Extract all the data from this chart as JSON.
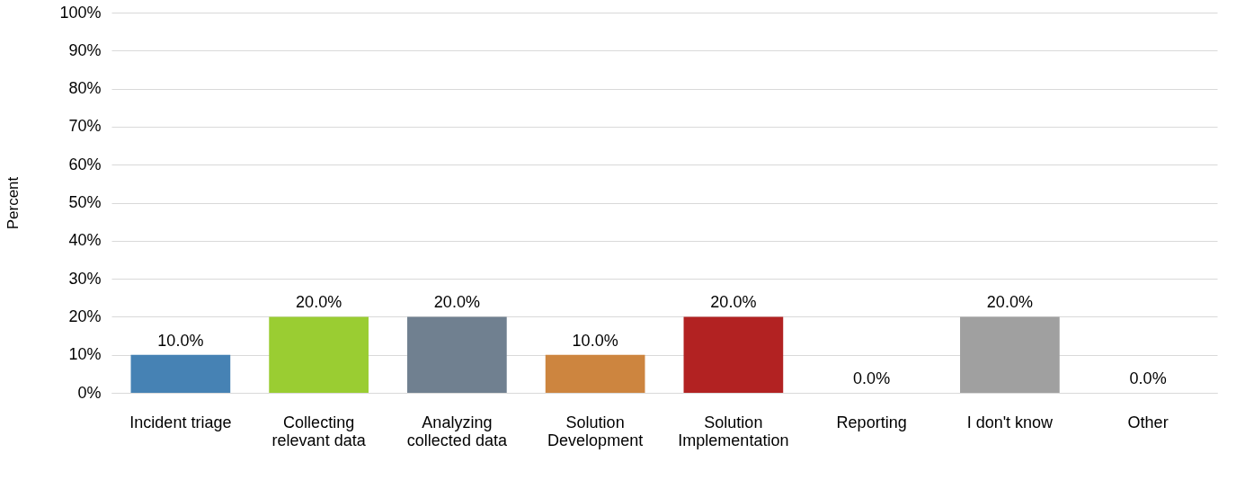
{
  "chart_data": {
    "type": "bar",
    "ylabel": "Percent",
    "categories": [
      "Incident triage",
      "Collecting\nrelevant data",
      "Analyzing\ncollected data",
      "Solution\nDevelopment",
      "Solution\nImplementation",
      "Reporting",
      "I don't know",
      "Other"
    ],
    "values": [
      10,
      20,
      20,
      10,
      20,
      0,
      20,
      0
    ],
    "colors": [
      "#4682b4",
      "#9acd32",
      "#708090",
      "#cd853f",
      "#b22222",
      "#808080",
      "#a0a0a0",
      "#808080"
    ],
    "value_labels": [
      "10.0%",
      "20.0%",
      "20.0%",
      "10.0%",
      "20.0%",
      "0.0%",
      "20.0%",
      "0.0%"
    ],
    "ylim": [
      0,
      100
    ],
    "yticks": [
      {
        "value": 0,
        "label": "0%"
      },
      {
        "value": 10,
        "label": "10%"
      },
      {
        "value": 20,
        "label": "20%"
      },
      {
        "value": 30,
        "label": "30%"
      },
      {
        "value": 40,
        "label": "40%"
      },
      {
        "value": 50,
        "label": "50%"
      },
      {
        "value": 60,
        "label": "60%"
      },
      {
        "value": 70,
        "label": "70%"
      },
      {
        "value": 80,
        "label": "80%"
      },
      {
        "value": 90,
        "label": "90%"
      },
      {
        "value": 100,
        "label": "100%"
      }
    ],
    "grid": "y"
  }
}
